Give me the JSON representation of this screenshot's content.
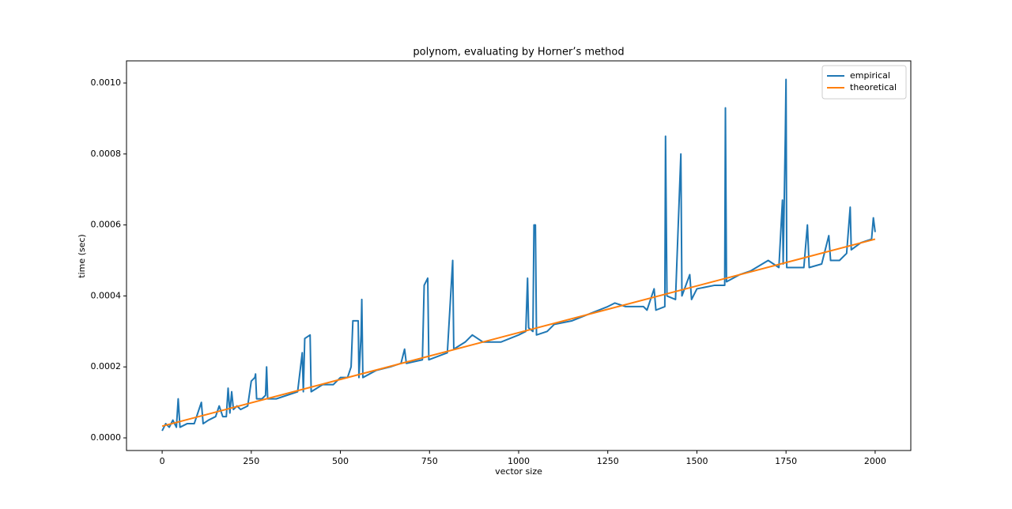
{
  "chart_data": {
    "type": "line",
    "title": "polynom, evaluating by Horner’s method",
    "x_label": "vector size",
    "y_label": "time (sec)",
    "xlim": [
      -100,
      2100
    ],
    "xticks": [
      0,
      250,
      500,
      750,
      1000,
      1250,
      1500,
      1750,
      2000
    ],
    "ylim": [
      -3.56e-05,
      0.0010624
    ],
    "yticks": [
      {
        "value": 0,
        "label": "0.0000"
      },
      0.0002,
      0.0004,
      0.0006,
      0.0008,
      {
        "value": 0.001,
        "label": "0.0010"
      }
    ],
    "legend": "upper right",
    "series": [
      {
        "name": "empirical",
        "color": "#1f77b4",
        "x": [
          0,
          10,
          20,
          30,
          40,
          45,
          50,
          70,
          90,
          100,
          110,
          115,
          130,
          150,
          160,
          170,
          180,
          185,
          190,
          195,
          200,
          210,
          220,
          240,
          250,
          260,
          262,
          265,
          280,
          290,
          293,
          296,
          320,
          350,
          380,
          393,
          396,
          400,
          415,
          418,
          450,
          480,
          500,
          520,
          530,
          535,
          550,
          552,
          558,
          560,
          563,
          600,
          640,
          670,
          680,
          685,
          730,
          735,
          745,
          748,
          800,
          815,
          818,
          850,
          870,
          900,
          950,
          1000,
          1020,
          1025,
          1028,
          1040,
          1043,
          1047,
          1050,
          1080,
          1100,
          1150,
          1200,
          1250,
          1270,
          1300,
          1350,
          1360,
          1380,
          1385,
          1410,
          1412,
          1416,
          1440,
          1455,
          1458,
          1480,
          1485,
          1500,
          1550,
          1578,
          1580,
          1583,
          1620,
          1650,
          1700,
          1730,
          1740,
          1742,
          1748,
          1750,
          1752,
          1780,
          1800,
          1810,
          1815,
          1850,
          1870,
          1875,
          1900,
          1920,
          1930,
          1933,
          1960,
          1990,
          1995,
          2000
        ],
        "values": [
          2e-05,
          4e-05,
          3e-05,
          5e-05,
          3e-05,
          0.00011,
          3e-05,
          4e-05,
          4e-05,
          7e-05,
          0.0001,
          4e-05,
          5e-05,
          6e-05,
          9e-05,
          6e-05,
          6e-05,
          0.00014,
          7e-05,
          0.00013,
          8e-05,
          9e-05,
          8e-05,
          9e-05,
          0.00016,
          0.00017,
          0.00018,
          0.00011,
          0.00011,
          0.00012,
          0.0002,
          0.00011,
          0.00011,
          0.00012,
          0.00013,
          0.00024,
          0.00013,
          0.00028,
          0.00029,
          0.00013,
          0.00015,
          0.00015,
          0.00017,
          0.00017,
          0.0002,
          0.00033,
          0.00033,
          0.00017,
          0.00029,
          0.00039,
          0.00017,
          0.00019,
          0.0002,
          0.00021,
          0.00025,
          0.00021,
          0.00022,
          0.00043,
          0.00045,
          0.00022,
          0.00024,
          0.0005,
          0.00025,
          0.00027,
          0.00029,
          0.00027,
          0.00027,
          0.00029,
          0.0003,
          0.00045,
          0.00031,
          0.0003,
          0.0006,
          0.0006,
          0.00029,
          0.0003,
          0.00032,
          0.00033,
          0.00035,
          0.00037,
          0.00038,
          0.00037,
          0.00037,
          0.00036,
          0.00042,
          0.00036,
          0.00037,
          0.00085,
          0.0004,
          0.00039,
          0.0008,
          0.0004,
          0.00046,
          0.00039,
          0.00042,
          0.00043,
          0.00043,
          0.00093,
          0.00044,
          0.00046,
          0.00047,
          0.0005,
          0.00048,
          0.00067,
          0.00049,
          0.00085,
          0.00101,
          0.00048,
          0.00048,
          0.00048,
          0.0006,
          0.00048,
          0.00049,
          0.00057,
          0.0005,
          0.0005,
          0.00052,
          0.00065,
          0.00053,
          0.00055,
          0.00056,
          0.00062,
          0.00058
        ]
      },
      {
        "name": "theoretical",
        "color": "#ff7f0e",
        "x": [
          0,
          2000
        ],
        "values": [
          3.3e-05,
          0.00056
        ]
      }
    ]
  }
}
